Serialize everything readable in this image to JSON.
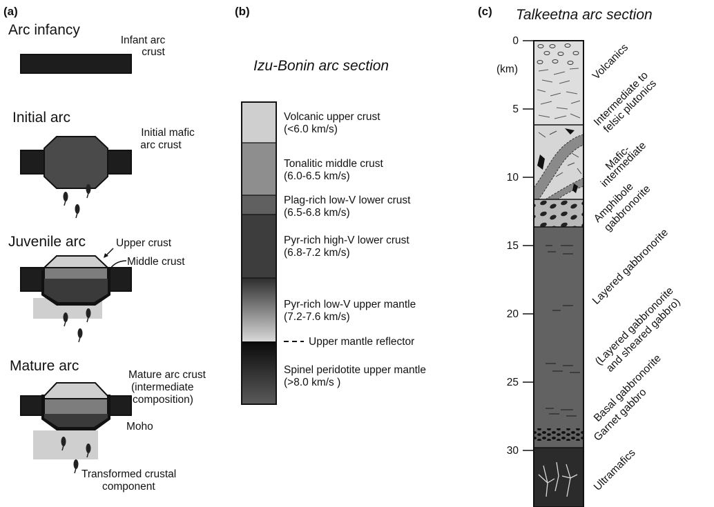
{
  "panel_a": {
    "label": "(a)",
    "stage1": {
      "title": "Arc infancy",
      "note_line1": "Infant arc",
      "note_line2": "crust"
    },
    "stage2": {
      "title": "Initial arc",
      "note_line1": "Initial mafic",
      "note_line2": "arc crust"
    },
    "stage3": {
      "title": "Juvenile arc",
      "upper": "Upper crust",
      "middle": "Middle crust"
    },
    "stage4": {
      "title": "Mature arc",
      "note_line1": "Mature arc crust",
      "note_line2": "(intermediate",
      "note_line3": "composition)",
      "moho": "Moho",
      "transformed_line1": "Transformed crustal",
      "transformed_line2": "component"
    }
  },
  "panel_b": {
    "label": "(b)",
    "title": "Izu-Bonin arc section",
    "layers": [
      {
        "name": "Volcanic upper crust",
        "velocity": "(<6.0 km/s)",
        "color": "#cfcfcf"
      },
      {
        "name": "Tonalitic middle crust",
        "velocity": "(6.0-6.5 km/s)",
        "color": "#8e8e8e"
      },
      {
        "name": "Plag-rich low-V lower crust",
        "velocity": "(6.5-6.8 km/s)",
        "color": "#606060"
      },
      {
        "name": "Pyr-rich high-V lower crust",
        "velocity": "(6.8-7.2 km/s)",
        "color": "#3d3d3d"
      },
      {
        "name": "Pyr-rich low-V upper mantle",
        "velocity": "(7.2-7.6 km/s)",
        "color": "gradient"
      },
      {
        "name": "Spinel peridotite upper mantle",
        "velocity": "(>8.0 km/s )",
        "color": "gradient-dark"
      }
    ],
    "reflector": "Upper mantle reflector"
  },
  "panel_c": {
    "label": "(c)",
    "title": "Talkeetna arc section",
    "unit": "(km)",
    "ticks": [
      "0",
      "5",
      "10",
      "15",
      "20",
      "25",
      "30"
    ],
    "units": [
      "Volcanics",
      "Intermediate to felsic plutonics",
      "Mafic-intermediate",
      "Amphibole gabbronorite",
      "Layered gabbronorite",
      "(Layered gabbronorite and sheared gabbro)",
      "Basal gabbronorite",
      "Garnet gabbro",
      "Ultramafics"
    ],
    "unit_lines": {
      "intermediate_1": "Intermediate to",
      "intermediate_2": "felsic plutonics",
      "mafic_1": "Mafic-",
      "mafic_2": "intermediate",
      "amphibole_1": "Amphibole",
      "amphibole_2": "gabbronorite",
      "layered_sheared_1": "(Layered gabbronorite",
      "layered_sheared_2": "and sheared gabbro)"
    }
  }
}
